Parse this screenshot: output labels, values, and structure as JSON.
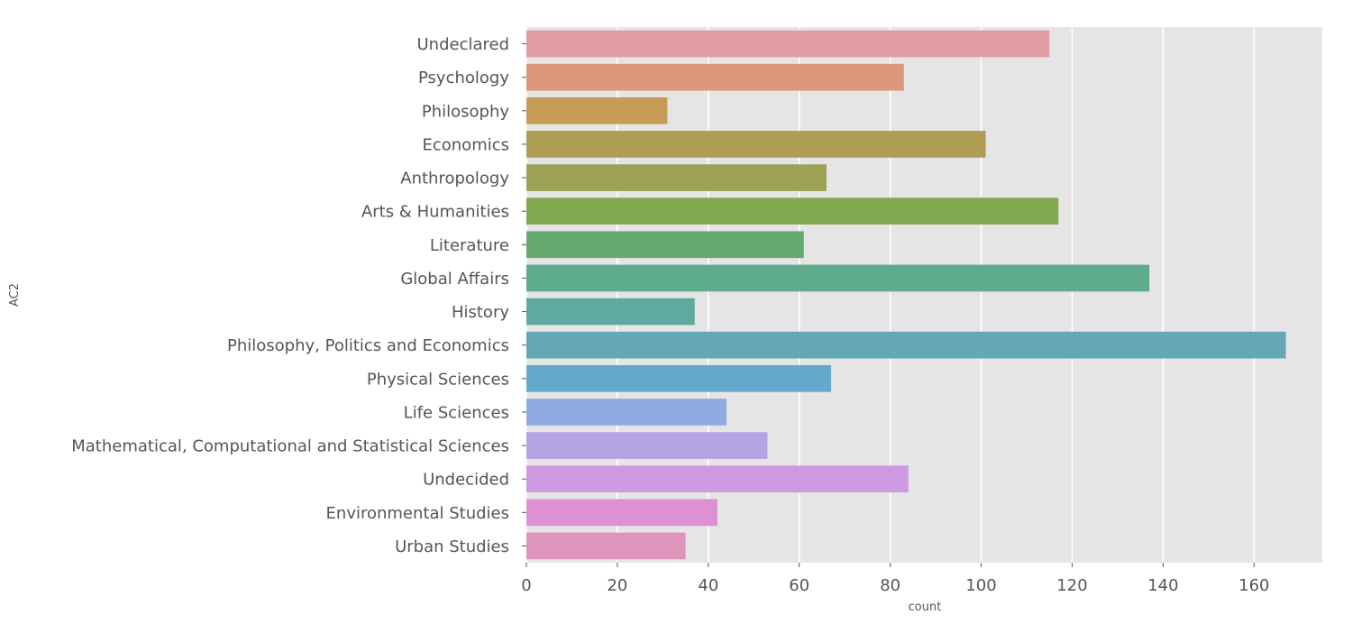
{
  "chart_data": {
    "type": "bar",
    "orientation": "horizontal",
    "title": "",
    "xlabel": "count",
    "ylabel": "AC2",
    "categories": [
      "Undeclared",
      "Psychology",
      "Philosophy",
      "Economics",
      "Anthropology",
      "Arts & Humanities",
      "Literature",
      "Global Affairs",
      "History",
      "Philosophy, Politics and Economics",
      "Physical Sciences",
      "Life Sciences",
      "Mathematical, Computational and Statistical Sciences",
      "Undecided",
      "Environmental Studies",
      "Urban Studies"
    ],
    "values": [
      115,
      83,
      31,
      101,
      66,
      117,
      61,
      137,
      37,
      167,
      67,
      44,
      53,
      84,
      42,
      35
    ],
    "colors": [
      "#e29aa5",
      "#dc977c",
      "#c79a56",
      "#ae9d55",
      "#9da255",
      "#83a852",
      "#64aa6f",
      "#5eab8d",
      "#5fa9a0",
      "#64a8b5",
      "#64a8cc",
      "#8eacE2",
      "#b3a5e3",
      "#cd99e3",
      "#dd90d3",
      "#de95bb"
    ],
    "xlim": [
      0,
      175
    ],
    "xticks": [
      0,
      20,
      40,
      60,
      80,
      100,
      120,
      140,
      160
    ],
    "grid": true,
    "style": "ggplot"
  }
}
